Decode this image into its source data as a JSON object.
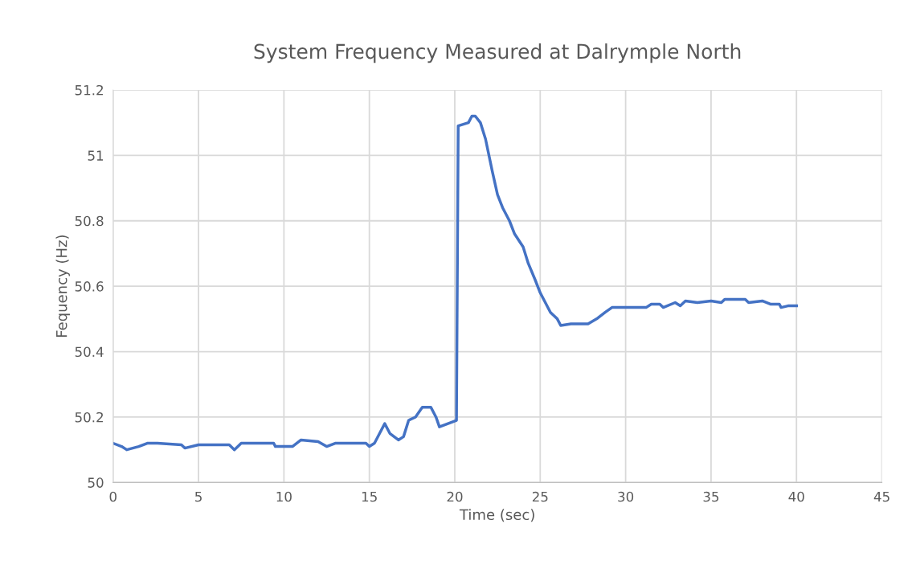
{
  "chart_data": {
    "type": "line",
    "title": "System Frequency Measured at Dalrymple North",
    "xlabel": "Time (sec)",
    "ylabel": "Fequency (Hz)",
    "xlim": [
      0,
      45
    ],
    "xticks": [
      0,
      5,
      10,
      15,
      20,
      25,
      30,
      35,
      40,
      45
    ],
    "ylim": [
      50,
      51.2
    ],
    "yticks": [
      50,
      50.2,
      50.4,
      50.6,
      50.8,
      51,
      51.2
    ],
    "grid": true,
    "legend": false,
    "marker": "none",
    "line_style": "solid",
    "series": [
      {
        "color": "#4472c4",
        "x": [
          0,
          0.5,
          0.8,
          1.5,
          2.0,
          2.6,
          4.0,
          4.2,
          5.0,
          6.8,
          7.1,
          7.5,
          9.4,
          9.5,
          10.5,
          11.0,
          12.0,
          12.5,
          13.0,
          14.8,
          15.0,
          15.3,
          15.6,
          15.9,
          16.2,
          16.7,
          17.0,
          17.3,
          17.7,
          18.1,
          18.6,
          18.9,
          19.1,
          20.1,
          20.2,
          20.8,
          21.0,
          21.2,
          21.5,
          21.8,
          22.0,
          22.2,
          22.5,
          22.8,
          23.2,
          23.5,
          24.0,
          24.3,
          24.7,
          25.0,
          25.3,
          25.6,
          26.0,
          26.2,
          26.8,
          27.8,
          28.3,
          28.8,
          29.2,
          31.2,
          31.5,
          32.0,
          32.2,
          32.9,
          33.2,
          33.5,
          34.2,
          35.0,
          35.6,
          35.8,
          37.0,
          37.2,
          38.0,
          38.5,
          39.0,
          39.1,
          39.5,
          40.0
        ],
        "values": [
          50.12,
          50.11,
          50.1,
          50.11,
          50.12,
          50.12,
          50.115,
          50.105,
          50.115,
          50.115,
          50.1,
          50.12,
          50.12,
          50.11,
          50.11,
          50.13,
          50.125,
          50.11,
          50.12,
          50.12,
          50.11,
          50.12,
          50.15,
          50.18,
          50.15,
          50.13,
          50.14,
          50.19,
          50.2,
          50.23,
          50.23,
          50.2,
          50.17,
          50.19,
          51.09,
          51.1,
          51.12,
          51.12,
          51.1,
          51.05,
          51.0,
          50.95,
          50.88,
          50.84,
          50.8,
          50.76,
          50.72,
          50.67,
          50.62,
          50.58,
          50.55,
          50.52,
          50.5,
          50.48,
          50.485,
          50.485,
          50.5,
          50.52,
          50.535,
          50.535,
          50.545,
          50.545,
          50.535,
          50.55,
          50.54,
          50.555,
          50.55,
          50.555,
          50.55,
          50.56,
          50.56,
          50.55,
          50.555,
          50.545,
          50.545,
          50.535,
          50.54,
          50.54
        ]
      }
    ]
  }
}
